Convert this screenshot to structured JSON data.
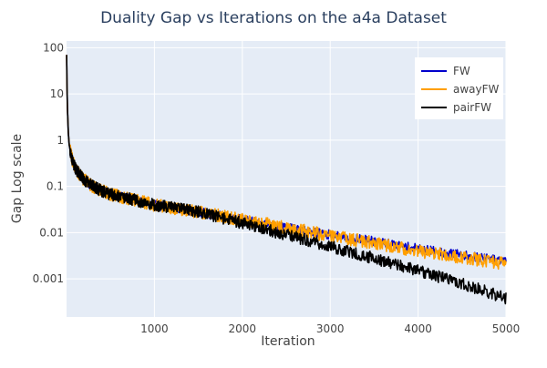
{
  "chart_data": {
    "type": "line",
    "title": "Duality Gap vs Iterations on the a4a Dataset",
    "xlabel": "Iteration",
    "ylabel": "Gap Log scale",
    "x_range": [
      0,
      5000
    ],
    "x_ticks": [
      1000,
      2000,
      3000,
      4000,
      5000
    ],
    "x_tick_labels": [
      "1000",
      "2000",
      "3000",
      "4000",
      "5000"
    ],
    "y_scale": "log",
    "y_range": [
      0.00015,
      140
    ],
    "y_ticks": [
      0.001,
      0.01,
      0.1,
      1,
      10,
      100
    ],
    "y_tick_labels": [
      "0.001",
      "0.01",
      "0.1",
      "1",
      "10",
      "100"
    ],
    "grid": true,
    "legend_position": "top-right",
    "colors": {
      "plot_bg": "#e5ecf6",
      "grid": "#ffffff",
      "text": "#444444",
      "title": "#2a3f5f"
    },
    "series": [
      {
        "name": "FW",
        "color": "#0000cc",
        "x": [
          1,
          5,
          10,
          20,
          30,
          50,
          70,
          100,
          150,
          200,
          300,
          400,
          500,
          700,
          1000,
          1500,
          2000,
          2500,
          3000,
          3500,
          4000,
          4500,
          5000
        ],
        "y": [
          70,
          15,
          5,
          1.5,
          0.8,
          0.5,
          0.35,
          0.25,
          0.18,
          0.14,
          0.1,
          0.08,
          0.068,
          0.055,
          0.04,
          0.028,
          0.019,
          0.013,
          0.009,
          0.0065,
          0.0045,
          0.0033,
          0.0024
        ],
        "noise": 0.1
      },
      {
        "name": "awayFW",
        "color": "#ff9f00",
        "x": [
          1,
          5,
          10,
          20,
          30,
          50,
          70,
          100,
          150,
          200,
          300,
          400,
          500,
          700,
          1000,
          1500,
          2000,
          2500,
          3000,
          3500,
          4000,
          4500,
          5000
        ],
        "y": [
          70,
          15,
          5,
          1.5,
          0.8,
          0.5,
          0.35,
          0.25,
          0.18,
          0.14,
          0.1,
          0.08,
          0.068,
          0.055,
          0.04,
          0.028,
          0.019,
          0.013,
          0.0085,
          0.006,
          0.004,
          0.0029,
          0.0021
        ],
        "noise": 0.14
      },
      {
        "name": "pairFW",
        "color": "#000000",
        "x": [
          1,
          5,
          10,
          20,
          30,
          50,
          70,
          100,
          150,
          200,
          300,
          400,
          500,
          700,
          1000,
          1500,
          2000,
          2500,
          3000,
          3500,
          4000,
          4500,
          5000
        ],
        "y": [
          70,
          15,
          5,
          1.5,
          0.8,
          0.5,
          0.35,
          0.25,
          0.18,
          0.14,
          0.1,
          0.08,
          0.068,
          0.055,
          0.04,
          0.028,
          0.016,
          0.009,
          0.005,
          0.0028,
          0.0015,
          0.0008,
          0.00038
        ],
        "noise": 0.13
      }
    ]
  }
}
